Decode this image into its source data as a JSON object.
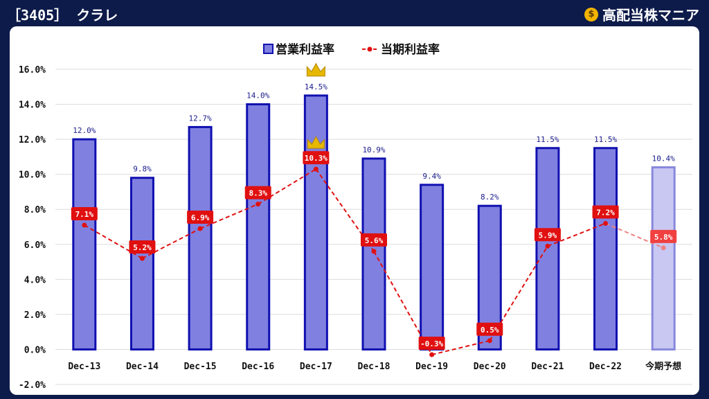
{
  "header": {
    "title": "［3405］ クラレ",
    "brand": "高配当株マニア",
    "brand_icon": "money-bag-icon"
  },
  "colors": {
    "background": "#0d1b4a",
    "bar_fill": "#8080e0",
    "bar_stroke": "#1010b0",
    "forecast_fill": "#c8c8f2",
    "forecast_stroke": "#8888dd",
    "line": "#e01010",
    "crown": "#e6b800"
  },
  "chart_data": {
    "type": "bar",
    "categories": [
      "Dec-13",
      "Dec-14",
      "Dec-15",
      "Dec-16",
      "Dec-17",
      "Dec-18",
      "Dec-19",
      "Dec-20",
      "Dec-21",
      "Dec-22",
      "今期予想"
    ],
    "series": [
      {
        "name": "営業利益率",
        "kind": "bar",
        "values": [
          12.0,
          9.8,
          12.7,
          14.0,
          14.5,
          10.9,
          9.4,
          8.2,
          11.5,
          11.5,
          10.4
        ],
        "labels": [
          "12.0%",
          "9.8%",
          "12.7%",
          "14.0%",
          "14.5%",
          "10.9%",
          "9.4%",
          "8.2%",
          "11.5%",
          "11.5%",
          "10.4%"
        ]
      },
      {
        "name": "当期利益率",
        "kind": "line",
        "values": [
          7.1,
          5.2,
          6.9,
          8.3,
          10.3,
          5.6,
          -0.3,
          0.5,
          5.9,
          7.2,
          5.8
        ],
        "labels": [
          "7.1%",
          "5.2%",
          "6.9%",
          "8.3%",
          "10.3%",
          "5.6%",
          "-0.3%",
          "0.5%",
          "5.9%",
          "7.2%",
          "5.8%"
        ]
      }
    ],
    "forecast_index": 10,
    "max_marker_index": 4,
    "ylim": [
      -2,
      16
    ],
    "yticks": [
      -2,
      0,
      2,
      4,
      6,
      8,
      10,
      12,
      14,
      16
    ],
    "ytick_labels": [
      "-2.0%",
      "0.0%",
      "2.0%",
      "4.0%",
      "6.0%",
      "8.0%",
      "10.0%",
      "12.0%",
      "14.0%",
      "16.0%"
    ],
    "legend_position": "top-center",
    "grid": true
  }
}
